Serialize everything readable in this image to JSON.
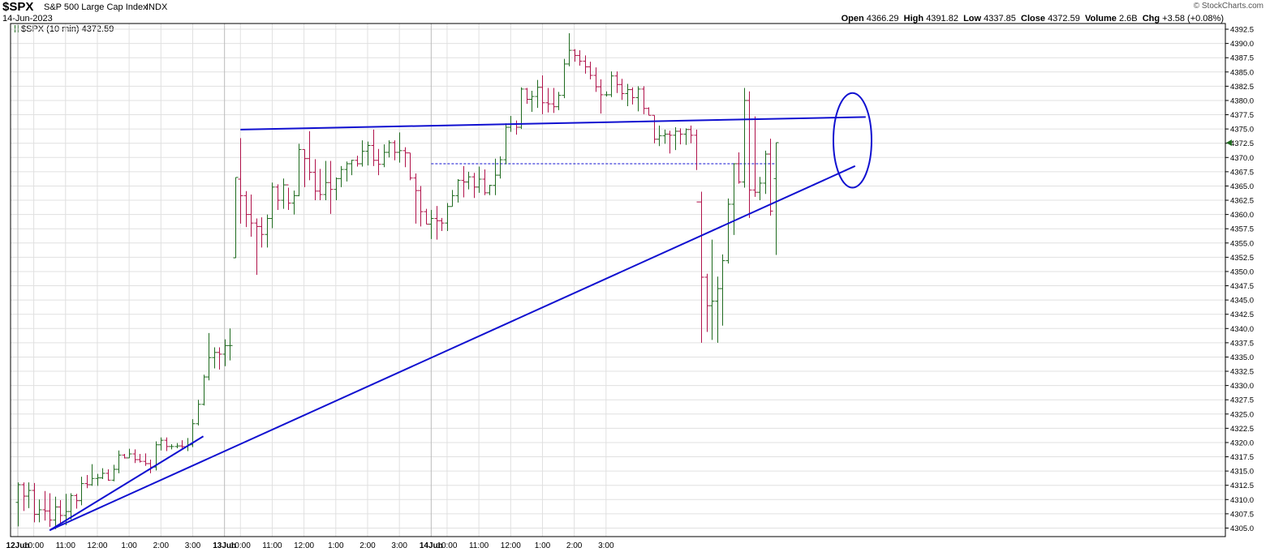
{
  "header": {
    "symbol": "$SPX",
    "description": "S&P 500 Large Cap Index",
    "exchange": "INDX",
    "date": "14-Jun-2023",
    "credit": "© StockCharts.com",
    "legend": "$SPX (10 min) 4372.59",
    "ohlc": {
      "open_label": "Open",
      "open": "4366.29",
      "high_label": "High",
      "high": "4391.82",
      "low_label": "Low",
      "low": "4337.85",
      "close_label": "Close",
      "close": "4372.59",
      "volume_label": "Volume",
      "volume": "2.6B",
      "chg_label": "Chg",
      "chg": "+3.58 (+0.08%)"
    }
  },
  "colors": {
    "up": "#1f6b1f",
    "down": "#b0124a",
    "trendline": "#1010d0",
    "grid": "#e0e0e0",
    "axis": "#000000"
  },
  "chart_data": {
    "type": "ohlc",
    "interval": "10 min",
    "ylim": [
      4303.5,
      4393.5
    ],
    "y_ticks": [
      "4305.0",
      "4307.5",
      "4310.0",
      "4312.5",
      "4315.0",
      "4317.5",
      "4320.0",
      "4322.5",
      "4325.0",
      "4327.5",
      "4330.0",
      "4332.5",
      "4335.0",
      "4337.5",
      "4340.0",
      "4342.5",
      "4345.0",
      "4347.5",
      "4350.0",
      "4352.5",
      "4355.0",
      "4357.5",
      "4360.0",
      "4362.5",
      "4365.0",
      "4367.5",
      "4370.0",
      "4372.5",
      "4375.0",
      "4377.5",
      "4380.0",
      "4382.5",
      "4385.0",
      "4387.5",
      "4390.0",
      "4392.5"
    ],
    "last_price": 4372.59,
    "x_ticks": [
      {
        "label": "12Jun",
        "bar": 0,
        "bold": true
      },
      {
        "label": "10:00",
        "bar": 3
      },
      {
        "label": "11:00",
        "bar": 9
      },
      {
        "label": "12:00",
        "bar": 15
      },
      {
        "label": "1:00",
        "bar": 21
      },
      {
        "label": "2:00",
        "bar": 27
      },
      {
        "label": "3:00",
        "bar": 33
      },
      {
        "label": "13Jun",
        "bar": 39,
        "bold": true
      },
      {
        "label": "10:00",
        "bar": 42
      },
      {
        "label": "11:00",
        "bar": 48
      },
      {
        "label": "12:00",
        "bar": 54
      },
      {
        "label": "1:00",
        "bar": 60
      },
      {
        "label": "2:00",
        "bar": 66
      },
      {
        "label": "3:00",
        "bar": 72
      },
      {
        "label": "14Jun",
        "bar": 78,
        "bold": true
      },
      {
        "label": "10:00",
        "bar": 81
      },
      {
        "label": "11:00",
        "bar": 87
      },
      {
        "label": "12:00",
        "bar": 93
      },
      {
        "label": "1:00",
        "bar": 99
      },
      {
        "label": "2:00",
        "bar": 105
      },
      {
        "label": "3:00",
        "bar": 111
      }
    ],
    "bars": [
      [
        4309.5,
        4313.0,
        4305.3,
        4312.6
      ],
      [
        4312.6,
        4313.0,
        4308.0,
        4310.6
      ],
      [
        4310.6,
        4313.0,
        4308.5,
        4311.6
      ],
      [
        4311.6,
        4312.9,
        4306.0,
        4307.4
      ],
      [
        4307.4,
        4310.0,
        4306.0,
        4308.2
      ],
      [
        4308.2,
        4311.5,
        4306.3,
        4308.0
      ],
      [
        4308.0,
        4311.1,
        4305.2,
        4306.4
      ],
      [
        4306.4,
        4310.5,
        4304.8,
        4308.7
      ],
      [
        4308.7,
        4309.9,
        4305.8,
        4307.2
      ],
      [
        4307.2,
        4311.0,
        4305.5,
        4307.9
      ],
      [
        4307.9,
        4311.1,
        4306.5,
        4310.7
      ],
      [
        4310.7,
        4311.0,
        4308.4,
        4309.8
      ],
      [
        4309.8,
        4314.0,
        4309.0,
        4312.8
      ],
      [
        4312.8,
        4314.3,
        4312.0,
        4312.6
      ],
      [
        4312.6,
        4316.2,
        4312.4,
        4313.7
      ],
      [
        4313.7,
        4314.5,
        4312.4,
        4313.8
      ],
      [
        4313.8,
        4315.5,
        4313.6,
        4314.6
      ],
      [
        4314.6,
        4315.3,
        4313.3,
        4313.4
      ],
      [
        4313.4,
        4316.1,
        4313.2,
        4315.3
      ],
      [
        4315.3,
        4318.6,
        4314.6,
        4317.8
      ],
      [
        4317.8,
        4318.0,
        4317.2,
        4317.3
      ],
      [
        4317.3,
        4318.9,
        4317.3,
        4318.0
      ],
      [
        4318.0,
        4318.8,
        4316.4,
        4317.0
      ],
      [
        4317.0,
        4318.0,
        4316.5,
        4316.7
      ],
      [
        4316.7,
        4318.1,
        4315.9,
        4316.3
      ],
      [
        4316.3,
        4317.0,
        4314.6,
        4315.7
      ],
      [
        4315.7,
        4320.2,
        4315.1,
        4319.6
      ],
      [
        4319.6,
        4320.9,
        4318.6,
        4320.4
      ],
      [
        4320.4,
        4320.9,
        4318.5,
        4319.3
      ],
      [
        4319.3,
        4319.7,
        4318.8,
        4319.3
      ],
      [
        4319.3,
        4319.9,
        4319.0,
        4319.4
      ],
      [
        4319.4,
        4320.4,
        4319.0,
        4319.3
      ],
      [
        4319.3,
        4320.8,
        4318.5,
        4319.6
      ],
      [
        4319.6,
        4324.1,
        4319.2,
        4323.3
      ],
      [
        4323.3,
        4327.5,
        4323.0,
        4326.7
      ],
      [
        4326.7,
        4331.9,
        4326.5,
        4331.5
      ],
      [
        4331.5,
        4339.2,
        4330.9,
        4334.9
      ],
      [
        4334.9,
        4336.7,
        4333.0,
        4335.8
      ],
      [
        4335.8,
        4336.7,
        4332.8,
        4335.5
      ],
      [
        4335.5,
        4338.1,
        4333.4,
        4337.0
      ],
      [
        4337.0,
        4340.0,
        4334.4,
        4337.0
      ],
      [
        4352.4,
        4366.5,
        4352.4,
        4366.5
      ],
      [
        4366.2,
        4373.4,
        4358.4,
        4363.3
      ],
      [
        4363.3,
        4364.1,
        4357.8,
        4360.0
      ],
      [
        4360.0,
        4363.5,
        4356.1,
        4358.5
      ],
      [
        4358.5,
        4359.3,
        4349.4,
        4357.9
      ],
      [
        4357.9,
        4359.5,
        4354.2,
        4356.5
      ],
      [
        4356.5,
        4360.0,
        4354.2,
        4359.3
      ],
      [
        4359.3,
        4365.6,
        4357.6,
        4364.8
      ],
      [
        4364.8,
        4365.3,
        4360.8,
        4362.5
      ],
      [
        4362.5,
        4366.3,
        4361.0,
        4365.2
      ],
      [
        4365.2,
        4364.7,
        4360.8,
        4362.0
      ],
      [
        4362.0,
        4364.2,
        4360.0,
        4363.3
      ],
      [
        4363.3,
        4372.4,
        4363.2,
        4371.4
      ],
      [
        4371.4,
        4371.4,
        4364.8,
        4369.8
      ],
      [
        4369.8,
        4374.6,
        4366.0,
        4367.4
      ],
      [
        4367.4,
        4369.7,
        4362.5,
        4364.1
      ],
      [
        4364.1,
        4368.0,
        4362.5,
        4363.5
      ],
      [
        4363.5,
        4369.4,
        4362.5,
        4365.6
      ],
      [
        4365.6,
        4369.4,
        4360.1,
        4364.4
      ],
      [
        4364.4,
        4366.5,
        4362.5,
        4366.3
      ],
      [
        4366.3,
        4368.5,
        4364.8,
        4367.9
      ],
      [
        4367.9,
        4369.3,
        4365.8,
        4368.9
      ],
      [
        4368.9,
        4369.6,
        4366.9,
        4369.5
      ],
      [
        4369.5,
        4370.3,
        4368.4,
        4368.9
      ],
      [
        4368.9,
        4373.0,
        4368.4,
        4371.1
      ],
      [
        4371.1,
        4372.8,
        4368.6,
        4372.1
      ],
      [
        4372.1,
        4374.9,
        4368.5,
        4369.5
      ],
      [
        4369.5,
        4371.5,
        4366.9,
        4368.8
      ],
      [
        4368.8,
        4372.3,
        4368.3,
        4370.9
      ],
      [
        4370.9,
        4373.0,
        4370.0,
        4372.6
      ],
      [
        4372.6,
        4373.0,
        4369.5,
        4370.9
      ],
      [
        4370.9,
        4374.4,
        4369.1,
        4371.2
      ],
      [
        4371.2,
        4371.8,
        4368.3,
        4370.8
      ],
      [
        4370.8,
        4370.8,
        4366.0,
        4366.4
      ],
      [
        4366.4,
        4367.2,
        4358.4,
        4364.2
      ],
      [
        4364.2,
        4365.0,
        4357.9,
        4360.5
      ],
      [
        4360.5,
        4361.0,
        4358.3,
        4358.3
      ],
      [
        4358.3,
        4360.8,
        4355.7,
        4359.3
      ],
      [
        4359.3,
        4361.5,
        4355.6,
        4358.9
      ],
      [
        4358.9,
        4359.4,
        4357.1,
        4358.5
      ],
      [
        4358.5,
        4362.0,
        4357.1,
        4361.4
      ],
      [
        4361.4,
        4364.3,
        4361.4,
        4363.3
      ],
      [
        4363.3,
        4366.2,
        4362.1,
        4366.0
      ],
      [
        4366.0,
        4368.5,
        4363.0,
        4365.7
      ],
      [
        4365.7,
        4367.5,
        4364.4,
        4366.6
      ],
      [
        4366.6,
        4367.3,
        4362.9,
        4364.8
      ],
      [
        4364.8,
        4368.4,
        4363.8,
        4366.2
      ],
      [
        4366.2,
        4367.9,
        4363.4,
        4363.8
      ],
      [
        4363.8,
        4365.2,
        4363.4,
        4365.1
      ],
      [
        4365.1,
        4369.8,
        4363.4,
        4366.9
      ],
      [
        4366.9,
        4370.2,
        4366.3,
        4369.6
      ],
      [
        4369.6,
        4376.0,
        4368.8,
        4375.3
      ],
      [
        4375.3,
        4377.3,
        4374.5,
        4375.8
      ],
      [
        4375.8,
        4376.5,
        4374.0,
        4375.3
      ],
      [
        4375.3,
        4382.3,
        4375.0,
        4382.0
      ],
      [
        4382.0,
        4382.2,
        4379.4,
        4380.2
      ],
      [
        4380.2,
        4381.7,
        4378.0,
        4380.7
      ],
      [
        4380.7,
        4383.6,
        4378.7,
        4382.3
      ],
      [
        4382.3,
        4384.4,
        4377.6,
        4379.6
      ],
      [
        4379.6,
        4382.2,
        4377.9,
        4379.4
      ],
      [
        4379.4,
        4382.2,
        4377.8,
        4378.9
      ],
      [
        4378.9,
        4381.5,
        4378.3,
        4380.9
      ],
      [
        4380.9,
        4387.3,
        4380.4,
        4386.4
      ],
      [
        4386.4,
        4391.8,
        4386.0,
        4388.8
      ],
      [
        4388.8,
        4389.0,
        4386.8,
        4387.9
      ],
      [
        4387.9,
        4388.8,
        4386.1,
        4386.9
      ],
      [
        4386.9,
        4387.9,
        4384.7,
        4385.9
      ],
      [
        4385.9,
        4386.8,
        4383.7,
        4384.4
      ],
      [
        4384.4,
        4385.8,
        4381.5,
        4382.4
      ],
      [
        4382.4,
        4383.7,
        4377.7,
        4381.0
      ],
      [
        4381.0,
        4381.6,
        4380.7,
        4381.0
      ],
      [
        4381.0,
        4385.1,
        4380.6,
        4384.3
      ],
      [
        4384.3,
        4385.1,
        4381.3,
        4382.8
      ],
      [
        4382.8,
        4383.8,
        4380.1,
        4381.2
      ],
      [
        4381.2,
        4382.9,
        4379.0,
        4381.9
      ],
      [
        4381.9,
        4382.3,
        4379.3,
        4380.5
      ],
      [
        4380.5,
        4382.5,
        4378.1,
        4382.0
      ],
      [
        4382.0,
        4382.5,
        4377.6,
        4378.6
      ],
      [
        4378.6,
        4378.8,
        4377.4,
        4377.4
      ],
      [
        4377.4,
        4377.4,
        4372.5,
        4373.2
      ],
      [
        4373.2,
        4375.6,
        4372.0,
        4373.8
      ],
      [
        4373.8,
        4374.9,
        4372.4,
        4374.1
      ],
      [
        4374.1,
        4374.7,
        4370.7,
        4373.9
      ],
      [
        4373.9,
        4375.3,
        4371.3,
        4374.6
      ],
      [
        4374.6,
        4375.1,
        4372.3,
        4374.1
      ],
      [
        4374.1,
        4375.1,
        4372.2,
        4374.9
      ],
      [
        4374.9,
        4375.6,
        4372.5,
        4373.9
      ],
      [
        4373.9,
        4374.9,
        4367.8,
        4362.2
      ],
      [
        4362.2,
        4364.0,
        4337.5,
        4349.0
      ],
      [
        4349.0,
        4349.6,
        4339.4,
        4344.0
      ],
      [
        4344.0,
        4355.6,
        4338.0,
        4344.8
      ],
      [
        4344.8,
        4349.1,
        4337.5,
        4347.0
      ],
      [
        4347.0,
        4353.0,
        4340.5,
        4351.9
      ],
      [
        4351.9,
        4362.8,
        4351.4,
        4361.8
      ],
      [
        4361.8,
        4369.0,
        4356.4,
        4368.9
      ],
      [
        4368.9,
        4370.9,
        4365.4,
        4365.7
      ],
      [
        4365.7,
        4382.2,
        4364.7,
        4380.0
      ],
      [
        4380.0,
        4381.6,
        4359.4,
        4364.3
      ],
      [
        4364.3,
        4377.2,
        4363.1,
        4363.9
      ],
      [
        4363.9,
        4366.6,
        4362.5,
        4365.5
      ],
      [
        4365.5,
        4371.2,
        4363.6,
        4370.6
      ],
      [
        4370.6,
        4373.3,
        4359.8,
        4360.6
      ],
      [
        4366.3,
        4372.6,
        4352.9,
        4372.6
      ]
    ],
    "trendlines": [
      {
        "from": {
          "bar": 6,
          "price": 4304.6
        },
        "to": {
          "bar": 35,
          "price": 4321.1
        }
      },
      {
        "from": {
          "bar": 6,
          "price": 4304.6
        },
        "to": {
          "bar": 158,
          "price": 4368.5
        }
      },
      {
        "from": {
          "bar": 42,
          "price": 4374.9
        },
        "to": {
          "bar": 160,
          "price": 4377.1
        }
      }
    ],
    "annotations": [
      {
        "type": "ellipse",
        "center_bar": 157.5,
        "center_price": 4373.0,
        "bar_radius": 3.6,
        "price_radius": 8.3
      }
    ]
  }
}
